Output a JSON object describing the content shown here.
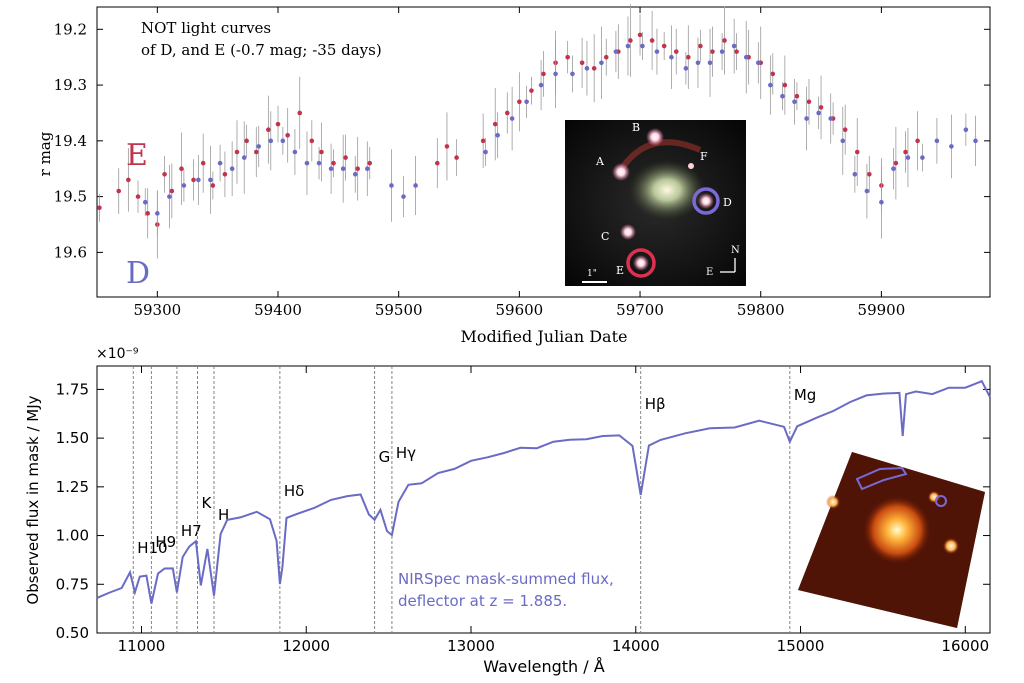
{
  "chart_data": [
    {
      "type": "scatter",
      "title": "",
      "xlabel": "Modified Julian Date",
      "ylabel": "r mag",
      "xlim": [
        59250,
        59990
      ],
      "ylim": [
        19.68,
        19.16
      ],
      "y_inverted": true,
      "x_ticks": [
        59300,
        59400,
        59500,
        59600,
        59700,
        59800,
        59900
      ],
      "y_ticks": [
        19.2,
        19.3,
        19.4,
        19.5,
        19.6
      ],
      "annotation": "NOT light curves\nof D, and E (-0.7 mag; -35 days)",
      "grid": false,
      "legend": "none",
      "series": [
        {
          "name": "E",
          "color": "#c0344d",
          "x": [
            59252,
            59268,
            59276,
            59284,
            59292,
            59300,
            59306,
            59312,
            59320,
            59330,
            59338,
            59346,
            59356,
            59366,
            59374,
            59382,
            59392,
            59400,
            59408,
            59418,
            59428,
            59436,
            59446,
            59456,
            59466,
            59476,
            59532,
            59540,
            59548,
            59570,
            59580,
            59590,
            59600,
            59610,
            59620,
            59630,
            59640,
            59652,
            59662,
            59672,
            59682,
            59692,
            59700,
            59710,
            59720,
            59730,
            59740,
            59750,
            59760,
            59770,
            59780,
            59790,
            59800,
            59810,
            59820,
            59830,
            59840,
            59850,
            59860,
            59870,
            59880,
            59890,
            59900,
            59912,
            59920,
            59930
          ],
          "y": [
            19.52,
            19.49,
            19.47,
            19.5,
            19.53,
            19.55,
            19.46,
            19.49,
            19.45,
            19.47,
            19.44,
            19.48,
            19.46,
            19.42,
            19.4,
            19.42,
            19.38,
            19.37,
            19.39,
            19.35,
            19.4,
            19.42,
            19.44,
            19.43,
            19.45,
            19.44,
            19.44,
            19.41,
            19.43,
            19.4,
            19.37,
            19.35,
            19.33,
            19.31,
            19.28,
            19.26,
            19.25,
            19.26,
            19.27,
            19.25,
            19.24,
            19.22,
            19.21,
            19.22,
            19.23,
            19.24,
            19.25,
            19.23,
            19.24,
            19.22,
            19.24,
            19.25,
            19.26,
            19.28,
            19.3,
            19.32,
            19.33,
            19.34,
            19.36,
            19.38,
            19.42,
            19.46,
            19.48,
            19.44,
            19.42,
            19.4
          ]
        },
        {
          "name": "D",
          "color": "#6a6bc4",
          "x": [
            59290,
            59300,
            59310,
            59322,
            59334,
            59344,
            59352,
            59362,
            59372,
            59384,
            59394,
            59404,
            59414,
            59424,
            59434,
            59444,
            59454,
            59464,
            59474,
            59494,
            59504,
            59514,
            59572,
            59582,
            59594,
            59606,
            59618,
            59630,
            59644,
            59656,
            59668,
            59680,
            59690,
            59702,
            59714,
            59726,
            59738,
            59748,
            59758,
            59768,
            59778,
            59788,
            59798,
            59808,
            59818,
            59828,
            59838,
            59848,
            59858,
            59868,
            59878,
            59888,
            59900,
            59910,
            59922,
            59934,
            59946,
            59958,
            59970,
            59978
          ],
          "y": [
            19.51,
            19.53,
            19.5,
            19.48,
            19.47,
            19.47,
            19.44,
            19.45,
            19.43,
            19.41,
            19.4,
            19.4,
            19.42,
            19.44,
            19.44,
            19.45,
            19.45,
            19.46,
            19.45,
            19.48,
            19.5,
            19.48,
            19.42,
            19.39,
            19.36,
            19.33,
            19.3,
            19.28,
            19.28,
            19.27,
            19.26,
            19.24,
            19.23,
            19.23,
            19.24,
            19.25,
            19.27,
            19.26,
            19.26,
            19.24,
            19.23,
            19.25,
            19.26,
            19.3,
            19.32,
            19.33,
            19.36,
            19.35,
            19.36,
            19.4,
            19.46,
            19.49,
            19.51,
            19.45,
            19.43,
            19.43,
            19.4,
            19.41,
            19.38,
            19.4
          ]
        }
      ],
      "labels": {
        "E": "E",
        "D": "D"
      },
      "inset": {
        "labels": [
          "A",
          "B",
          "C",
          "D",
          "E",
          "F"
        ],
        "scale_label": "1\"",
        "north": "N",
        "east": "E"
      }
    },
    {
      "type": "line",
      "title": "",
      "xlabel": "Wavelength / Å",
      "ylabel": "Observed flux in mask / MJy",
      "y_multiplier": "×10⁻⁹",
      "xlim": [
        10730,
        16150
      ],
      "ylim": [
        0.5,
        1.87
      ],
      "x_ticks": [
        11000,
        12000,
        13000,
        14000,
        15000,
        16000
      ],
      "y_ticks": [
        0.5,
        0.75,
        1.0,
        1.25,
        1.5,
        1.75
      ],
      "y_tick_labels": [
        "0.50",
        "0.75",
        "1.00",
        "1.25",
        "1.50",
        "1.75"
      ],
      "grid": false,
      "legend": "none",
      "annotation": [
        "NIRSpec mask-summed flux,",
        "deflector at z = 1.885."
      ],
      "lines": [
        {
          "label": "H10",
          "x": 10950
        },
        {
          "label": "H9",
          "x": 11060
        },
        {
          "label": "H7",
          "x": 11215
        },
        {
          "label": "K",
          "x": 11340
        },
        {
          "label": "H",
          "x": 11440
        },
        {
          "label": "Hδ",
          "x": 11840
        },
        {
          "label": "G",
          "x": 12415
        },
        {
          "label": "Hγ",
          "x": 12520
        },
        {
          "label": "Hβ",
          "x": 14030
        },
        {
          "label": "Mg",
          "x": 14935
        }
      ],
      "series": [
        {
          "name": "NIRSpec mask-summed flux",
          "color": "#6a6bc4",
          "x": [
            10730,
            10800,
            10880,
            10930,
            10960,
            10990,
            11030,
            11060,
            11100,
            11140,
            11190,
            11215,
            11250,
            11290,
            11330,
            11360,
            11400,
            11440,
            11480,
            11520,
            11600,
            11700,
            11780,
            11820,
            11840,
            11855,
            11880,
            11950,
            12050,
            12150,
            12250,
            12330,
            12380,
            12415,
            12450,
            12490,
            12520,
            12560,
            12620,
            12700,
            12800,
            12900,
            13000,
            13100,
            13200,
            13300,
            13400,
            13500,
            13600,
            13700,
            13800,
            13900,
            13980,
            14030,
            14080,
            14150,
            14300,
            14450,
            14600,
            14750,
            14900,
            14935,
            14980,
            15100,
            15200,
            15300,
            15400,
            15500,
            15600,
            15620,
            15640,
            15700,
            15800,
            15900,
            16000,
            16100,
            16150
          ],
          "y": [
            0.68,
            0.7,
            0.74,
            0.8,
            0.72,
            0.78,
            0.8,
            0.65,
            0.8,
            0.84,
            0.82,
            0.72,
            0.88,
            0.95,
            0.97,
            0.74,
            0.94,
            0.68,
            1.02,
            1.07,
            1.1,
            1.12,
            1.08,
            0.98,
            0.74,
            0.85,
            1.08,
            1.12,
            1.14,
            1.18,
            1.21,
            1.2,
            1.12,
            1.07,
            1.14,
            1.02,
            1.0,
            1.18,
            1.25,
            1.28,
            1.31,
            1.35,
            1.38,
            1.4,
            1.43,
            1.44,
            1.46,
            1.47,
            1.5,
            1.49,
            1.51,
            1.52,
            1.45,
            1.22,
            1.45,
            1.5,
            1.52,
            1.55,
            1.56,
            1.58,
            1.57,
            1.47,
            1.57,
            1.6,
            1.64,
            1.69,
            1.71,
            1.74,
            1.72,
            1.52,
            1.72,
            1.74,
            1.73,
            1.75,
            1.77,
            1.78,
            1.72
          ]
        }
      ]
    }
  ]
}
